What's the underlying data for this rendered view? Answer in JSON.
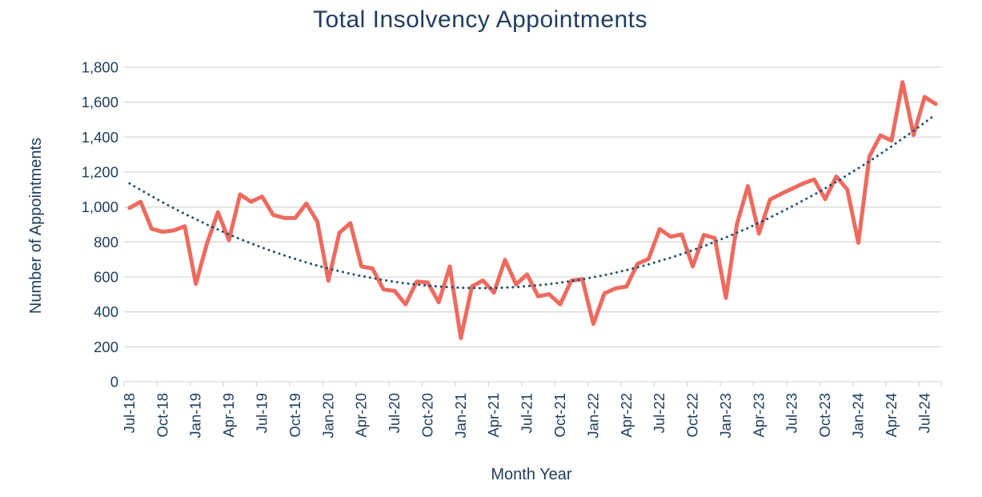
{
  "page": {
    "background": "#ffffff"
  },
  "colors": {
    "accent_line": "#ee6a5f",
    "trend_line": "#1f506f",
    "grid": "#d9d9d9",
    "axis": "#d9d9d9",
    "text": "#1c3d5e",
    "title_text": "#1e3d5f",
    "background": "#ffffff"
  },
  "chart_data": {
    "type": "line",
    "title": "Total Insolvency Appointments",
    "xlabel": "Month Year",
    "ylabel": "Number of Appointments",
    "ylim": [
      0,
      1800
    ],
    "ytick_step": 200,
    "ytick_labels": [
      "0",
      "200",
      "400",
      "600",
      "800",
      "1,000",
      "1,200",
      "1,400",
      "1,600",
      "1,800"
    ],
    "grid": "horizontal",
    "legend": "none",
    "x_tick_interval_months": 3,
    "x_tick_labels": [
      "Jul-18",
      "Oct-18",
      "Jan-19",
      "Apr-19",
      "Jul-19",
      "Oct-19",
      "Jan-20",
      "Apr-20",
      "Jul-20",
      "Oct-20",
      "Jan-21",
      "Apr-21",
      "Jul-21",
      "Oct-21",
      "Jan-22",
      "Apr-22",
      "Jul-22",
      "Oct-22",
      "Jan-23",
      "Apr-23",
      "Jul-23",
      "Oct-23",
      "Jan-24",
      "Apr-24",
      "Jul-24"
    ],
    "categories": [
      "Jul-18",
      "Aug-18",
      "Sep-18",
      "Oct-18",
      "Nov-18",
      "Dec-18",
      "Jan-19",
      "Feb-19",
      "Mar-19",
      "Apr-19",
      "May-19",
      "Jun-19",
      "Jul-19",
      "Aug-19",
      "Sep-19",
      "Oct-19",
      "Nov-19",
      "Dec-19",
      "Jan-20",
      "Feb-20",
      "Mar-20",
      "Apr-20",
      "May-20",
      "Jun-20",
      "Jul-20",
      "Aug-20",
      "Sep-20",
      "Oct-20",
      "Nov-20",
      "Dec-20",
      "Jan-21",
      "Feb-21",
      "Mar-21",
      "Apr-21",
      "May-21",
      "Jun-21",
      "Jul-21",
      "Aug-21",
      "Sep-21",
      "Oct-21",
      "Nov-21",
      "Dec-21",
      "Jan-22",
      "Feb-22",
      "Mar-22",
      "Apr-22",
      "May-22",
      "Jun-22",
      "Jul-22",
      "Aug-22",
      "Sep-22",
      "Oct-22",
      "Nov-22",
      "Dec-22",
      "Jan-23",
      "Feb-23",
      "Mar-23",
      "Apr-23",
      "May-23",
      "Jun-23",
      "Jul-23",
      "Aug-23",
      "Sep-23",
      "Oct-23",
      "Nov-23",
      "Dec-23",
      "Jan-24",
      "Feb-24",
      "Mar-24",
      "Apr-24",
      "May-24",
      "Jun-24",
      "Jul-24",
      "Aug-24"
    ],
    "series": [
      {
        "name": "appointments",
        "style": "solid",
        "color": "#ee6a5f",
        "stroke_width": 5,
        "values": [
          995,
          1030,
          875,
          858,
          866,
          890,
          560,
          790,
          970,
          810,
          1072,
          1030,
          1060,
          955,
          937,
          937,
          1020,
          917,
          578,
          852,
          908,
          660,
          648,
          528,
          520,
          443,
          573,
          568,
          455,
          660,
          250,
          545,
          580,
          510,
          698,
          557,
          614,
          489,
          501,
          443,
          579,
          587,
          331,
          506,
          534,
          545,
          675,
          703,
          874,
          830,
          843,
          660,
          840,
          822,
          480,
          903,
          1120,
          848,
          1043,
          1075,
          1105,
          1135,
          1158,
          1045,
          1175,
          1100,
          795,
          1290,
          1410,
          1380,
          1715,
          1412,
          1630,
          1590
        ]
      },
      {
        "name": "trend",
        "style": "dotted",
        "color": "#1f506f",
        "stroke_width": 3,
        "values": [
          1135,
          1098,
          1062,
          1027,
          993,
          961,
          930,
          900,
          871,
          843,
          817,
          792,
          768,
          745,
          723,
          703,
          683,
          665,
          648,
          633,
          618,
          605,
          593,
          582,
          572,
          563,
          556,
          550,
          545,
          541,
          538,
          537,
          536,
          537,
          539,
          542,
          547,
          552,
          559,
          567,
          576,
          586,
          598,
          610,
          624,
          639,
          655,
          672,
          691,
          710,
          731,
          753,
          776,
          801,
          826,
          853,
          880,
          909,
          940,
          971,
          1003,
          1037,
          1071,
          1107,
          1144,
          1183,
          1222,
          1262,
          1304,
          1347,
          1391,
          1436,
          1483,
          1530
        ]
      }
    ]
  }
}
